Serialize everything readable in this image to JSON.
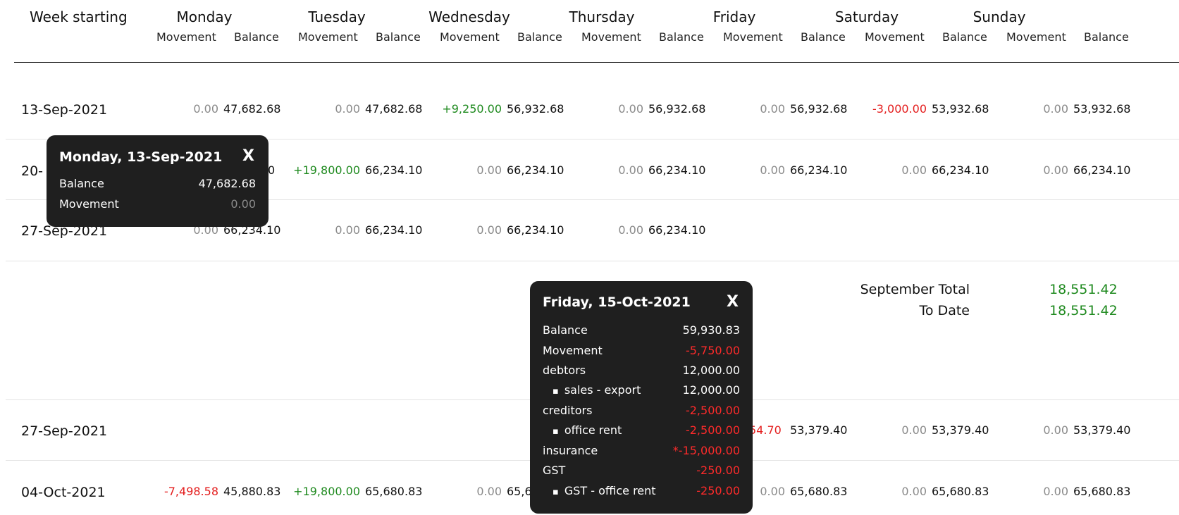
{
  "header": {
    "week_starting": "Week starting",
    "movement": "Movement",
    "balance": "Balance",
    "days": [
      "Monday",
      "Tuesday",
      "Wednesday",
      "Thursday",
      "Friday",
      "Saturday",
      "Sunday"
    ]
  },
  "september_block": {
    "rows": [
      {
        "week": "13-Sep-2021",
        "cells": [
          {
            "mv": "0.00",
            "bal": "47,682.68"
          },
          {
            "mv": "0.00",
            "bal": "47,682.68"
          },
          {
            "mv": "+9,250.00",
            "bal": "56,932.68"
          },
          {
            "mv": "0.00",
            "bal": "56,932.68"
          },
          {
            "mv": "0.00",
            "bal": "56,932.68"
          },
          {
            "mv": "-3,000.00",
            "bal": "53,932.68"
          },
          {
            "mv": "0.00",
            "bal": "53,932.68"
          }
        ]
      },
      {
        "week": "20-",
        "monday_partial": "0",
        "cells": [
          {
            "mv": "+19,800.00",
            "bal": "66,234.10"
          },
          {
            "mv": "0.00",
            "bal": "66,234.10"
          },
          {
            "mv": "0.00",
            "bal": "66,234.10"
          },
          {
            "mv": "0.00",
            "bal": "66,234.10"
          },
          {
            "mv": "0.00",
            "bal": "66,234.10"
          },
          {
            "mv": "0.00",
            "bal": "66,234.10"
          }
        ]
      },
      {
        "week": "27-Sep-2021",
        "cells": [
          {
            "mv": "0.00",
            "bal": "66,234.10"
          },
          {
            "mv": "0.00",
            "bal": "66,234.10"
          },
          {
            "mv": "0.00",
            "bal": "66,234.10"
          },
          {
            "mv": "0.00",
            "bal": "66,234.10"
          }
        ]
      }
    ],
    "totals": {
      "month_label": "September Total",
      "month_value": "18,551.42",
      "todate_label": "To Date",
      "todate_value": "18,551.42"
    }
  },
  "october_block": {
    "rows": [
      {
        "week": "27-Sep-2021",
        "friday_partial_mv": "54.70",
        "cells": [
          {
            "bal": "53,379.40"
          },
          {
            "mv": "0.00",
            "bal": "53,379.40"
          },
          {
            "mv": "0.00",
            "bal": "53,379.40"
          }
        ]
      },
      {
        "week": "04-Oct-2021",
        "cells": [
          {
            "mv": "-7,498.58",
            "bal": "45,880.83"
          },
          {
            "mv": "+19,800.00",
            "bal": "65,680.83"
          },
          {
            "mv": "0.00",
            "bal": "65,6"
          },
          {
            "mv": "0.00",
            "bal": "65,680.83"
          },
          {
            "mv": "0.00",
            "bal": "65,680.83"
          },
          {
            "mv": "0.00",
            "bal": "65,680.83"
          }
        ]
      }
    ]
  },
  "tooltip_monday": {
    "title": "Monday, 13-Sep-2021",
    "close": "X",
    "rows": [
      {
        "label": "Balance",
        "value": "47,682.68"
      },
      {
        "label": "Movement",
        "value": "0.00"
      }
    ]
  },
  "tooltip_friday": {
    "title": "Friday, 15-Oct-2021",
    "close": "X",
    "rows": [
      {
        "label": "Balance",
        "value": "59,930.83"
      },
      {
        "label": "Movement",
        "value": "-5,750.00"
      },
      {
        "label": "debtors",
        "value": "12,000.00"
      },
      {
        "label": "sales - export",
        "value": "12,000.00"
      },
      {
        "label": "creditors",
        "value": "-2,500.00"
      },
      {
        "label": "office rent",
        "value": "-2,500.00"
      },
      {
        "label": "insurance",
        "value": "*-15,000.00"
      },
      {
        "label": "GST",
        "value": "-250.00"
      },
      {
        "label": "GST - office rent",
        "value": "-250.00"
      }
    ]
  },
  "colors": {
    "positive": "#1f8a1f",
    "negative": "#e41e1e",
    "zero": "#8a8a8a",
    "tooltip_bg": "#1f1f1f"
  }
}
